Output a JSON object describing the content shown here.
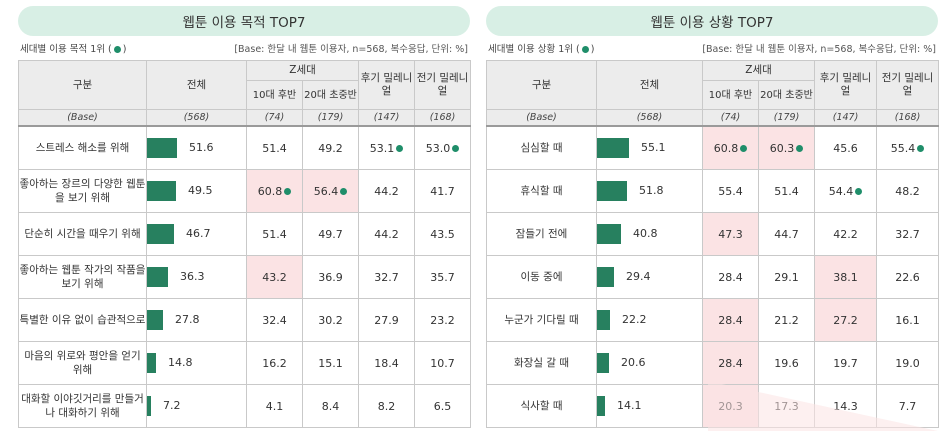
{
  "left": {
    "title": "웹툰 이용 목적 TOP7",
    "caption": "세대별 이용 목적 1위 (",
    "caption_end": ")",
    "base_note": "[Base: 한달 내 웹툰 이용자, n=568, 복수응답, 단위: %]",
    "headers": {
      "category": "구분",
      "total": "전체",
      "genz": "Z세대",
      "genz_late_10s": "10대 후반",
      "genz_early_20s": "20대 초중반",
      "late_mill": "후기 밀레니얼",
      "early_mill": "전기 밀레니얼"
    },
    "base_row": {
      "label": "(Base)",
      "total": "(568)",
      "c1": "(74)",
      "c2": "(179)",
      "c3": "(147)",
      "c4": "(168)"
    },
    "rows": [
      {
        "label": "스트레스 해소를 위해",
        "total": "51.6",
        "total_value": 51.6,
        "c1": "51.4",
        "c2": "49.2",
        "c3": "53.1",
        "c4": "53.0",
        "hl": [],
        "dot": [
          "c3",
          "c4"
        ]
      },
      {
        "label": "좋아하는 장르의 다양한 웹툰을 보기 위해",
        "total": "49.5",
        "total_value": 49.5,
        "c1": "60.8",
        "c2": "56.4",
        "c3": "44.2",
        "c4": "41.7",
        "hl": [
          "c1",
          "c2"
        ],
        "dot": [
          "c1",
          "c2"
        ]
      },
      {
        "label": "단순히 시간을 때우기 위해",
        "total": "46.7",
        "total_value": 46.7,
        "c1": "51.4",
        "c2": "49.7",
        "c3": "44.2",
        "c4": "43.5",
        "hl": [],
        "dot": []
      },
      {
        "label": "좋아하는 웹툰 작가의 작품을 보기 위해",
        "total": "36.3",
        "total_value": 36.3,
        "c1": "43.2",
        "c2": "36.9",
        "c3": "32.7",
        "c4": "35.7",
        "hl": [
          "c1"
        ],
        "dot": []
      },
      {
        "label": "특별한 이유 없이 습관적으로",
        "total": "27.8",
        "total_value": 27.8,
        "c1": "32.4",
        "c2": "30.2",
        "c3": "27.9",
        "c4": "23.2",
        "hl": [],
        "dot": []
      },
      {
        "label": "마음의 위로와 평안을 얻기 위해",
        "total": "14.8",
        "total_value": 14.8,
        "c1": "16.2",
        "c2": "15.1",
        "c3": "18.4",
        "c4": "10.7",
        "hl": [],
        "dot": []
      },
      {
        "label": "대화할 이야깃거리를 만들거나 대화하기 위해",
        "total": "7.2",
        "total_value": 7.2,
        "c1": "4.1",
        "c2": "8.4",
        "c3": "8.2",
        "c4": "6.5",
        "hl": [],
        "dot": []
      }
    ]
  },
  "right": {
    "title": "웹툰 이용 상황 TOP7",
    "caption": "세대별 이용 상황 1위 (",
    "caption_end": ")",
    "base_note": "[Base: 한달 내 웹툰 이용자, n=568, 복수응답, 단위: %]",
    "headers": {
      "category": "구분",
      "total": "전체",
      "genz": "Z세대",
      "genz_late_10s": "10대 후반",
      "genz_early_20s": "20대 초중반",
      "late_mill": "후기 밀레니얼",
      "early_mill": "전기 밀레니얼"
    },
    "base_row": {
      "label": "(Base)",
      "total": "(568)",
      "c1": "(74)",
      "c2": "(179)",
      "c3": "(147)",
      "c4": "(168)"
    },
    "rows": [
      {
        "label": "심심할 때",
        "total": "55.1",
        "total_value": 55.1,
        "c1": "60.8",
        "c2": "60.3",
        "c3": "45.6",
        "c4": "55.4",
        "hl": [
          "c1",
          "c2"
        ],
        "dot": [
          "c1",
          "c2",
          "c4"
        ]
      },
      {
        "label": "휴식할 때",
        "total": "51.8",
        "total_value": 51.8,
        "c1": "55.4",
        "c2": "51.4",
        "c3": "54.4",
        "c4": "48.2",
        "hl": [],
        "dot": [
          "c3"
        ]
      },
      {
        "label": "잠들기 전에",
        "total": "40.8",
        "total_value": 40.8,
        "c1": "47.3",
        "c2": "44.7",
        "c3": "42.2",
        "c4": "32.7",
        "hl": [
          "c1"
        ],
        "dot": []
      },
      {
        "label": "이동 중에",
        "total": "29.4",
        "total_value": 29.4,
        "c1": "28.4",
        "c2": "29.1",
        "c3": "38.1",
        "c4": "22.6",
        "hl": [
          "c3"
        ],
        "dot": []
      },
      {
        "label": "누군가 기다릴 때",
        "total": "22.2",
        "total_value": 22.2,
        "c1": "28.4",
        "c2": "21.2",
        "c3": "27.2",
        "c4": "16.1",
        "hl": [
          "c1",
          "c3"
        ],
        "dot": []
      },
      {
        "label": "화장실 갈 때",
        "total": "20.6",
        "total_value": 20.6,
        "c1": "28.4",
        "c2": "19.6",
        "c3": "19.7",
        "c4": "19.0",
        "hl": [
          "c1"
        ],
        "dot": []
      },
      {
        "label": "식사할 때",
        "total": "14.1",
        "total_value": 14.1,
        "c1": "20.3",
        "c2": "17.3",
        "c3": "14.3",
        "c4": "7.7",
        "hl": [
          "c1"
        ],
        "dot": []
      }
    ]
  },
  "colors": {
    "bar": "#27805f",
    "highlight": "#fbe3e4",
    "dot": "#1f8e6a",
    "banner": "#d8efe5",
    "header": "#ececec"
  }
}
